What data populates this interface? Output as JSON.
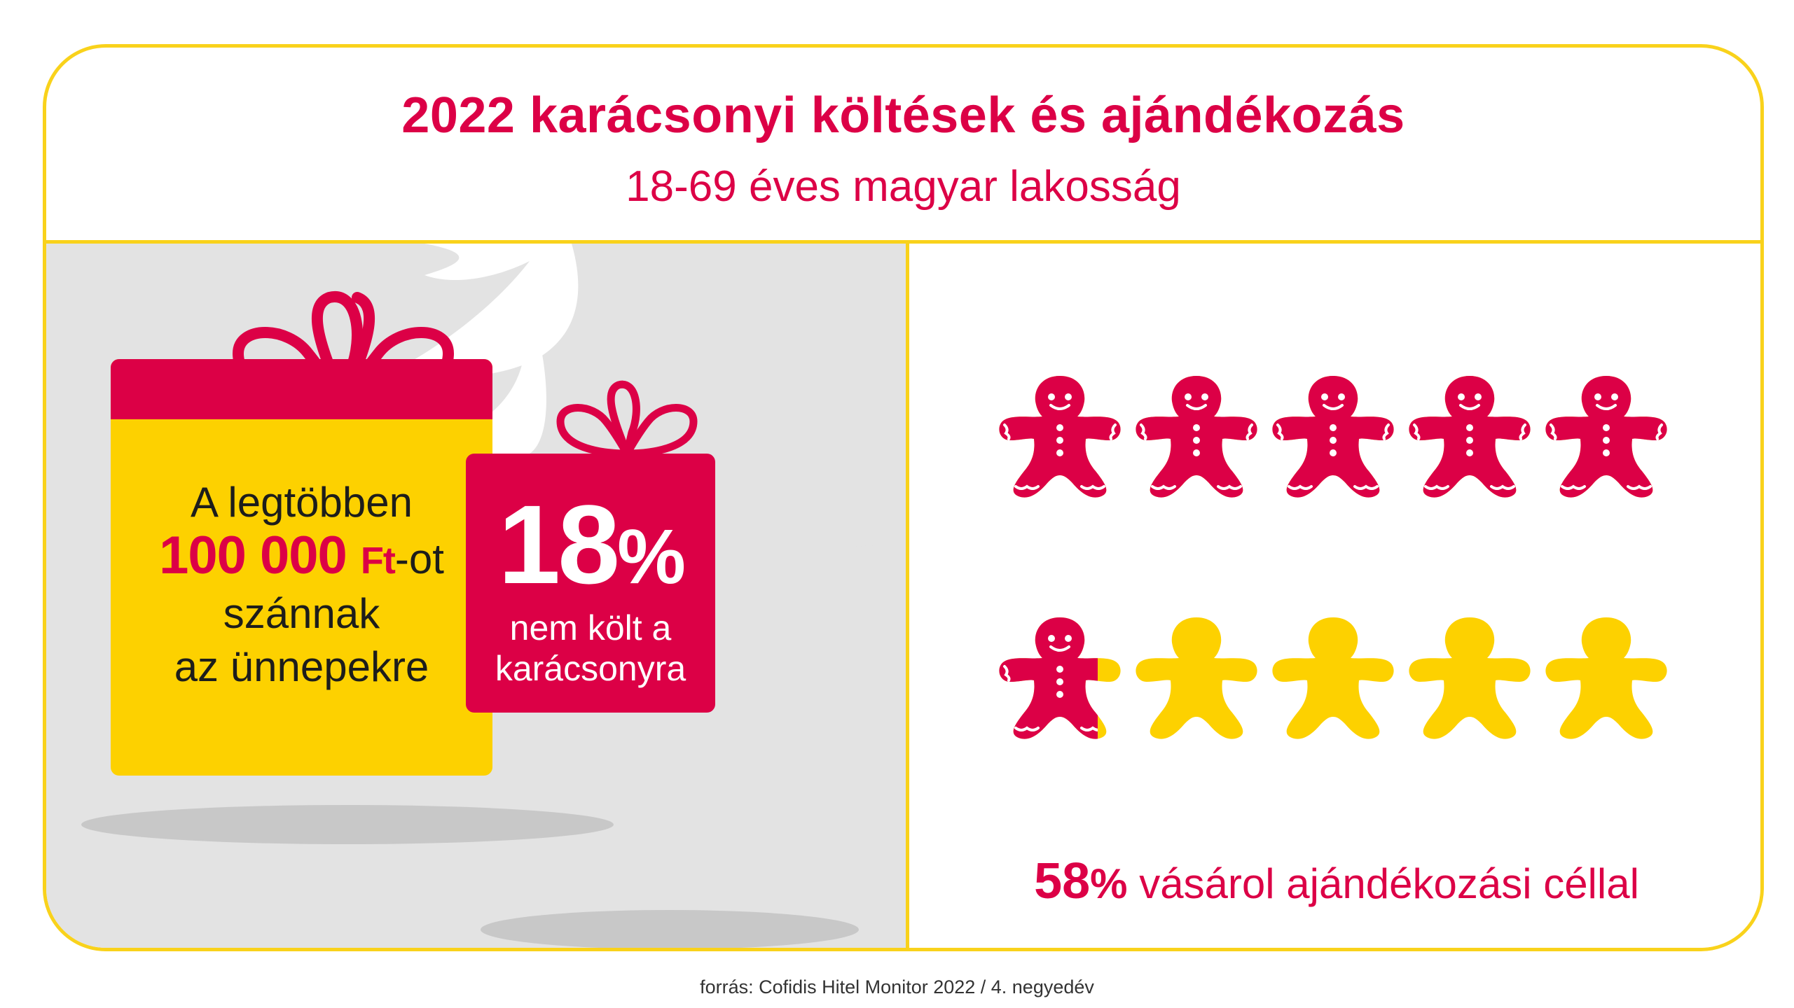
{
  "header": {
    "title": "2022 karácsonyi költések és ajándékozás",
    "subtitle": "18-69 éves magyar lakosság"
  },
  "big_gift": {
    "line1": "A legtöbben",
    "amount_number": "100 000",
    "amount_currency": "Ft",
    "amount_suffix": "-ot",
    "line3": "szánnak",
    "line4": "az ünnepekre"
  },
  "small_gift": {
    "percent_number": "18",
    "percent_sign": "%",
    "caption_line1": "nem költ a",
    "caption_line2": "karácsonyra"
  },
  "gingerbread": {
    "icon": "gingerbread-man-icon",
    "total": 10,
    "filled_value": 5.8,
    "filled_color": "#dc0046",
    "empty_color": "#fdd100"
  },
  "stat": {
    "number": "58",
    "sign": "%",
    "text": "vásárol ajándékozási céllal"
  },
  "source": "forrás: Cofidis Hitel Monitor 2022 / 4. negyedév",
  "colors": {
    "accent": "#dc0046",
    "yellow": "#fdd100",
    "frame": "#f9d21b",
    "panel": "#e3e3e3"
  }
}
